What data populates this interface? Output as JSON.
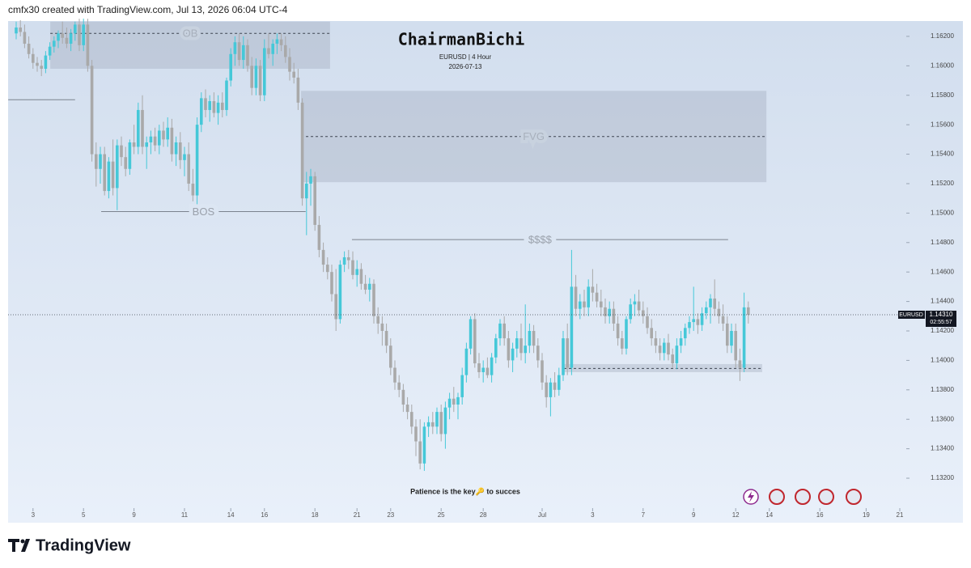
{
  "header": "cmfx30 created with TradingView.com, Jul 13, 2026 06:04 UTC-4",
  "logo": "TradingView",
  "chart_data": {
    "type": "candlestick",
    "title": "ChairmanBichi",
    "subtitle": "EURUSD | 4 Hour",
    "date": "2026-07-13",
    "footnote": "Patience is the key🔑 to succes",
    "up_color": "#45c8d8",
    "down_color": "#a9a9a9",
    "ylim": [
      1.12898,
      1.16304
    ],
    "xlim": [
      -1.923,
      211.54
    ],
    "yticks": [
      {
        "value": 1.162,
        "label": "1.16200"
      },
      {
        "value": 1.16,
        "label": "1.16000"
      },
      {
        "value": 1.158,
        "label": "1.15800"
      },
      {
        "value": 1.156,
        "label": "1.15600"
      },
      {
        "value": 1.154,
        "label": "1.15400"
      },
      {
        "value": 1.152,
        "label": "1.15200"
      },
      {
        "value": 1.15,
        "label": "1.15000"
      },
      {
        "value": 1.148,
        "label": "1.14800"
      },
      {
        "value": 1.146,
        "label": "1.14600"
      },
      {
        "value": 1.144,
        "label": "1.14400"
      },
      {
        "value": 1.142,
        "label": "1.14200"
      },
      {
        "value": 1.14,
        "label": "1.14000"
      },
      {
        "value": 1.138,
        "label": "1.13800"
      },
      {
        "value": 1.136,
        "label": "1.13600"
      },
      {
        "value": 1.134,
        "label": "1.13400"
      },
      {
        "value": 1.132,
        "label": "1.13200"
      }
    ],
    "xticks": [
      {
        "value": 4,
        "label": "3"
      },
      {
        "value": 16,
        "label": "5"
      },
      {
        "value": 28,
        "label": "9"
      },
      {
        "value": 40,
        "label": "11"
      },
      {
        "value": 51,
        "label": "14"
      },
      {
        "value": 59,
        "label": "16"
      },
      {
        "value": 71,
        "label": "18"
      },
      {
        "value": 81,
        "label": "21"
      },
      {
        "value": 89,
        "label": "23"
      },
      {
        "value": 101,
        "label": "25"
      },
      {
        "value": 111,
        "label": "28"
      },
      {
        "value": 125,
        "label": "Jul"
      },
      {
        "value": 137,
        "label": "3"
      },
      {
        "value": 149,
        "label": "7"
      },
      {
        "value": 161,
        "label": "9"
      },
      {
        "value": 171,
        "label": "12"
      },
      {
        "value": 179,
        "label": "14"
      },
      {
        "value": 191,
        "label": "16"
      },
      {
        "value": 202,
        "label": "19"
      },
      {
        "value": 210,
        "label": "21"
      }
    ],
    "last_price": {
      "symbol": "EURUSD",
      "value": 1.1431,
      "label": "1.14310",
      "countdown": "02:55:57"
    },
    "zones": [
      {
        "label": "OB",
        "x": [
          8.1,
          74.6
        ],
        "top": 1.163,
        "bottom": 1.1598,
        "level": 1.1622
      },
      {
        "label": "FVG",
        "x": [
          67.7,
          178.3
        ],
        "top": 1.1583,
        "bottom": 1.1521,
        "level": 1.1552
      },
      {
        "x": [
          130.2,
          177.3
        ],
        "top": 1.13975,
        "bottom": 1.1392,
        "level": 1.13945
      }
    ],
    "lines": [
      {
        "label": "BOS",
        "x": [
          20.2,
          68.8
        ],
        "level": 1.1501
      },
      {
        "label": "$$$$",
        "x": [
          79.8,
          169.2
        ],
        "level": 1.1482
      },
      {
        "x": [
          -1.9,
          14
        ],
        "level": 1.1577
      }
    ],
    "candles": [
      [
        1.1622,
        1.163,
        1.1618,
        1.1626
      ],
      [
        1.1626,
        1.1631,
        1.162,
        1.1623
      ],
      [
        1.1623,
        1.1628,
        1.1612,
        1.1615
      ],
      [
        1.1615,
        1.162,
        1.1605,
        1.1608
      ],
      [
        1.1608,
        1.1612,
        1.1598,
        1.1602
      ],
      [
        1.1602,
        1.1606,
        1.1596,
        1.16
      ],
      [
        1.16,
        1.1604,
        1.1593,
        1.1598
      ],
      [
        1.1598,
        1.161,
        1.1595,
        1.1607
      ],
      [
        1.1607,
        1.1616,
        1.1604,
        1.1613
      ],
      [
        1.1613,
        1.162,
        1.1609,
        1.1617
      ],
      [
        1.1617,
        1.1624,
        1.1612,
        1.1622
      ],
      [
        1.1622,
        1.163,
        1.1615,
        1.1619
      ],
      [
        1.1619,
        1.1626,
        1.1612,
        1.1615
      ],
      [
        1.1615,
        1.1625,
        1.161,
        1.1622
      ],
      [
        1.1622,
        1.163,
        1.1617,
        1.1628
      ],
      [
        1.1628,
        1.1632,
        1.161,
        1.1614
      ],
      [
        1.1614,
        1.1632,
        1.161,
        1.1628
      ],
      [
        1.1628,
        1.1632,
        1.1596,
        1.16
      ],
      [
        1.16,
        1.1604,
        1.1535,
        1.154
      ],
      [
        1.154,
        1.1548,
        1.1518,
        1.153
      ],
      [
        1.153,
        1.1545,
        1.152,
        1.154
      ],
      [
        1.154,
        1.1545,
        1.1512,
        1.1515
      ],
      [
        1.1515,
        1.1538,
        1.151,
        1.1535
      ],
      [
        1.1535,
        1.155,
        1.1512,
        1.1517
      ],
      [
        1.1517,
        1.155,
        1.1502,
        1.1546
      ],
      [
        1.1546,
        1.1552,
        1.1532,
        1.1538
      ],
      [
        1.1538,
        1.1545,
        1.1525,
        1.153
      ],
      [
        1.153,
        1.155,
        1.1526,
        1.1548
      ],
      [
        1.1548,
        1.156,
        1.154,
        1.1545
      ],
      [
        1.1545,
        1.1575,
        1.154,
        1.157
      ],
      [
        1.157,
        1.158,
        1.154,
        1.1545
      ],
      [
        1.1545,
        1.1552,
        1.153,
        1.1548
      ],
      [
        1.1548,
        1.1556,
        1.154,
        1.1552
      ],
      [
        1.1552,
        1.1558,
        1.1542,
        1.1546
      ],
      [
        1.1546,
        1.156,
        1.154,
        1.1556
      ],
      [
        1.1556,
        1.1562,
        1.1545,
        1.155
      ],
      [
        1.155,
        1.1565,
        1.1545,
        1.1558
      ],
      [
        1.1558,
        1.1564,
        1.1535,
        1.154
      ],
      [
        1.154,
        1.1552,
        1.1532,
        1.1548
      ],
      [
        1.1548,
        1.1555,
        1.153,
        1.1536
      ],
      [
        1.1536,
        1.1545,
        1.1525,
        1.154
      ],
      [
        1.154,
        1.1548,
        1.1515,
        1.152
      ],
      [
        1.152,
        1.153,
        1.1508,
        1.1512
      ],
      [
        1.1512,
        1.1565,
        1.1506,
        1.156
      ],
      [
        1.156,
        1.1582,
        1.1555,
        1.1578
      ],
      [
        1.1578,
        1.1584,
        1.1565,
        1.157
      ],
      [
        1.157,
        1.158,
        1.1562,
        1.1576
      ],
      [
        1.1576,
        1.1582,
        1.1565,
        1.1568
      ],
      [
        1.1568,
        1.158,
        1.156,
        1.1575
      ],
      [
        1.1575,
        1.1582,
        1.1565,
        1.157
      ],
      [
        1.157,
        1.1592,
        1.1566,
        1.159
      ],
      [
        1.159,
        1.1612,
        1.1586,
        1.1608
      ],
      [
        1.1608,
        1.162,
        1.16,
        1.1616
      ],
      [
        1.1616,
        1.1622,
        1.16,
        1.1604
      ],
      [
        1.1604,
        1.162,
        1.1598,
        1.1614
      ],
      [
        1.1614,
        1.1618,
        1.1596,
        1.16
      ],
      [
        1.16,
        1.1606,
        1.158,
        1.1585
      ],
      [
        1.1585,
        1.1605,
        1.158,
        1.16
      ],
      [
        1.16,
        1.1604,
        1.1576,
        1.158
      ],
      [
        1.158,
        1.1618,
        1.1576,
        1.1612
      ],
      [
        1.1612,
        1.1622,
        1.1605,
        1.1608
      ],
      [
        1.1608,
        1.1618,
        1.16,
        1.1615
      ],
      [
        1.1615,
        1.1622,
        1.1608,
        1.1618
      ],
      [
        1.1618,
        1.1622,
        1.161,
        1.1614
      ],
      [
        1.1614,
        1.162,
        1.1602,
        1.1606
      ],
      [
        1.1606,
        1.1612,
        1.159,
        1.1596
      ],
      [
        1.1596,
        1.1602,
        1.1588,
        1.1592
      ],
      [
        1.1592,
        1.1598,
        1.157,
        1.1575
      ],
      [
        1.1575,
        1.1578,
        1.1505,
        1.151
      ],
      [
        1.151,
        1.1528,
        1.1485,
        1.152
      ],
      [
        1.152,
        1.153,
        1.1505,
        1.1525
      ],
      [
        1.1525,
        1.1528,
        1.1488,
        1.1492
      ],
      [
        1.1492,
        1.1498,
        1.147,
        1.1475
      ],
      [
        1.1475,
        1.148,
        1.146,
        1.1465
      ],
      [
        1.1465,
        1.147,
        1.1455,
        1.146
      ],
      [
        1.146,
        1.1465,
        1.144,
        1.1445
      ],
      [
        1.1445,
        1.1462,
        1.142,
        1.1428
      ],
      [
        1.1428,
        1.1468,
        1.1425,
        1.1465
      ],
      [
        1.1465,
        1.1474,
        1.146,
        1.147
      ],
      [
        1.147,
        1.1475,
        1.1462,
        1.1468
      ],
      [
        1.1468,
        1.1474,
        1.1455,
        1.1458
      ],
      [
        1.1458,
        1.1468,
        1.145,
        1.1462
      ],
      [
        1.1462,
        1.1466,
        1.1448,
        1.1452
      ],
      [
        1.1452,
        1.1458,
        1.1445,
        1.1448
      ],
      [
        1.1448,
        1.1456,
        1.144,
        1.1452
      ],
      [
        1.1452,
        1.1455,
        1.1425,
        1.143
      ],
      [
        1.143,
        1.1436,
        1.1418,
        1.1425
      ],
      [
        1.1425,
        1.143,
        1.141,
        1.142
      ],
      [
        1.142,
        1.1425,
        1.1405,
        1.141
      ],
      [
        1.141,
        1.1415,
        1.139,
        1.1395
      ],
      [
        1.1395,
        1.14,
        1.138,
        1.1385
      ],
      [
        1.1385,
        1.139,
        1.1375,
        1.138
      ],
      [
        1.138,
        1.1384,
        1.1365,
        1.137
      ],
      [
        1.137,
        1.1375,
        1.136,
        1.1365
      ],
      [
        1.1365,
        1.137,
        1.135,
        1.1355
      ],
      [
        1.1355,
        1.136,
        1.1335,
        1.1345
      ],
      [
        1.1345,
        1.136,
        1.1326,
        1.133
      ],
      [
        1.133,
        1.1358,
        1.1325,
        1.1355
      ],
      [
        1.1355,
        1.1362,
        1.1348,
        1.1358
      ],
      [
        1.1358,
        1.1365,
        1.135,
        1.1355
      ],
      [
        1.1355,
        1.1368,
        1.135,
        1.1365
      ],
      [
        1.1365,
        1.137,
        1.1345,
        1.135
      ],
      [
        1.135,
        1.1372,
        1.134,
        1.1368
      ],
      [
        1.1368,
        1.1378,
        1.136,
        1.1374
      ],
      [
        1.1374,
        1.1382,
        1.1365,
        1.137
      ],
      [
        1.137,
        1.1378,
        1.136,
        1.1375
      ],
      [
        1.1375,
        1.1395,
        1.137,
        1.139
      ],
      [
        1.139,
        1.1412,
        1.1385,
        1.1408
      ],
      [
        1.1408,
        1.143,
        1.1404,
        1.1428
      ],
      [
        1.1428,
        1.1432,
        1.1395,
        1.1398
      ],
      [
        1.1398,
        1.1405,
        1.1388,
        1.1392
      ],
      [
        1.1392,
        1.14,
        1.1385,
        1.1395
      ],
      [
        1.1395,
        1.1402,
        1.1388,
        1.139
      ],
      [
        1.139,
        1.1405,
        1.1385,
        1.1402
      ],
      [
        1.1402,
        1.1418,
        1.1398,
        1.1415
      ],
      [
        1.1415,
        1.1428,
        1.141,
        1.1425
      ],
      [
        1.1425,
        1.143,
        1.141,
        1.1415
      ],
      [
        1.1415,
        1.142,
        1.1395,
        1.14
      ],
      [
        1.14,
        1.1412,
        1.1392,
        1.1408
      ],
      [
        1.1408,
        1.142,
        1.1402,
        1.1415
      ],
      [
        1.1415,
        1.1425,
        1.14,
        1.1405
      ],
      [
        1.1405,
        1.1438,
        1.1398,
        1.141
      ],
      [
        1.141,
        1.1425,
        1.1405,
        1.142
      ],
      [
        1.142,
        1.1424,
        1.1405,
        1.141
      ],
      [
        1.141,
        1.1415,
        1.1395,
        1.14
      ],
      [
        1.14,
        1.1405,
        1.138,
        1.1385
      ],
      [
        1.1385,
        1.139,
        1.1368,
        1.1375
      ],
      [
        1.1375,
        1.1388,
        1.1362,
        1.1385
      ],
      [
        1.1385,
        1.1392,
        1.1375,
        1.138
      ],
      [
        1.138,
        1.1395,
        1.1376,
        1.139
      ],
      [
        1.139,
        1.142,
        1.1386,
        1.1415
      ],
      [
        1.1415,
        1.1425,
        1.139,
        1.1395
      ],
      [
        1.1395,
        1.1475,
        1.139,
        1.145
      ],
      [
        1.145,
        1.1458,
        1.143,
        1.1435
      ],
      [
        1.1435,
        1.1445,
        1.1428,
        1.144
      ],
      [
        1.144,
        1.1448,
        1.143,
        1.1436
      ],
      [
        1.1436,
        1.1455,
        1.143,
        1.145
      ],
      [
        1.145,
        1.1462,
        1.144,
        1.1446
      ],
      [
        1.1446,
        1.1452,
        1.1436,
        1.144
      ],
      [
        1.144,
        1.1448,
        1.143,
        1.1436
      ],
      [
        1.1436,
        1.1442,
        1.1425,
        1.143
      ],
      [
        1.143,
        1.144,
        1.1425,
        1.1435
      ],
      [
        1.1435,
        1.144,
        1.142,
        1.1425
      ],
      [
        1.1425,
        1.143,
        1.141,
        1.1415
      ],
      [
        1.1415,
        1.142,
        1.1404,
        1.1408
      ],
      [
        1.1408,
        1.143,
        1.1404,
        1.1428
      ],
      [
        1.1428,
        1.1442,
        1.1425,
        1.1438
      ],
      [
        1.1438,
        1.1445,
        1.143,
        1.144
      ],
      [
        1.144,
        1.1448,
        1.143,
        1.1434
      ],
      [
        1.1434,
        1.144,
        1.1425,
        1.143
      ],
      [
        1.143,
        1.1436,
        1.1418,
        1.1422
      ],
      [
        1.1422,
        1.1428,
        1.141,
        1.1415
      ],
      [
        1.1415,
        1.142,
        1.1405,
        1.141
      ],
      [
        1.141,
        1.1415,
        1.14,
        1.1405
      ],
      [
        1.1405,
        1.1415,
        1.14,
        1.1412
      ],
      [
        1.1412,
        1.1418,
        1.14,
        1.1404
      ],
      [
        1.1404,
        1.1408,
        1.1395,
        1.1398
      ],
      [
        1.1398,
        1.1415,
        1.1394,
        1.141
      ],
      [
        1.141,
        1.142,
        1.1405,
        1.1415
      ],
      [
        1.1415,
        1.1425,
        1.141,
        1.1422
      ],
      [
        1.1422,
        1.143,
        1.1418,
        1.1426
      ],
      [
        1.1426,
        1.145,
        1.142,
        1.1428
      ],
      [
        1.1428,
        1.1432,
        1.1418,
        1.1424
      ],
      [
        1.1424,
        1.1436,
        1.142,
        1.1432
      ],
      [
        1.1432,
        1.144,
        1.1428,
        1.1436
      ],
      [
        1.1436,
        1.1445,
        1.1425,
        1.1442
      ],
      [
        1.1442,
        1.1455,
        1.143,
        1.1435
      ],
      [
        1.1435,
        1.144,
        1.1425,
        1.143
      ],
      [
        1.143,
        1.1438,
        1.142,
        1.1425
      ],
      [
        1.1425,
        1.143,
        1.1405,
        1.141
      ],
      [
        1.141,
        1.1425,
        1.1405,
        1.142
      ],
      [
        1.142,
        1.1425,
        1.1395,
        1.14
      ],
      [
        1.14,
        1.1408,
        1.1386,
        1.1395
      ],
      [
        1.1395,
        1.1446,
        1.1392,
        1.1436
      ],
      [
        1.1436,
        1.144,
        1.1425,
        1.1431
      ]
    ]
  }
}
